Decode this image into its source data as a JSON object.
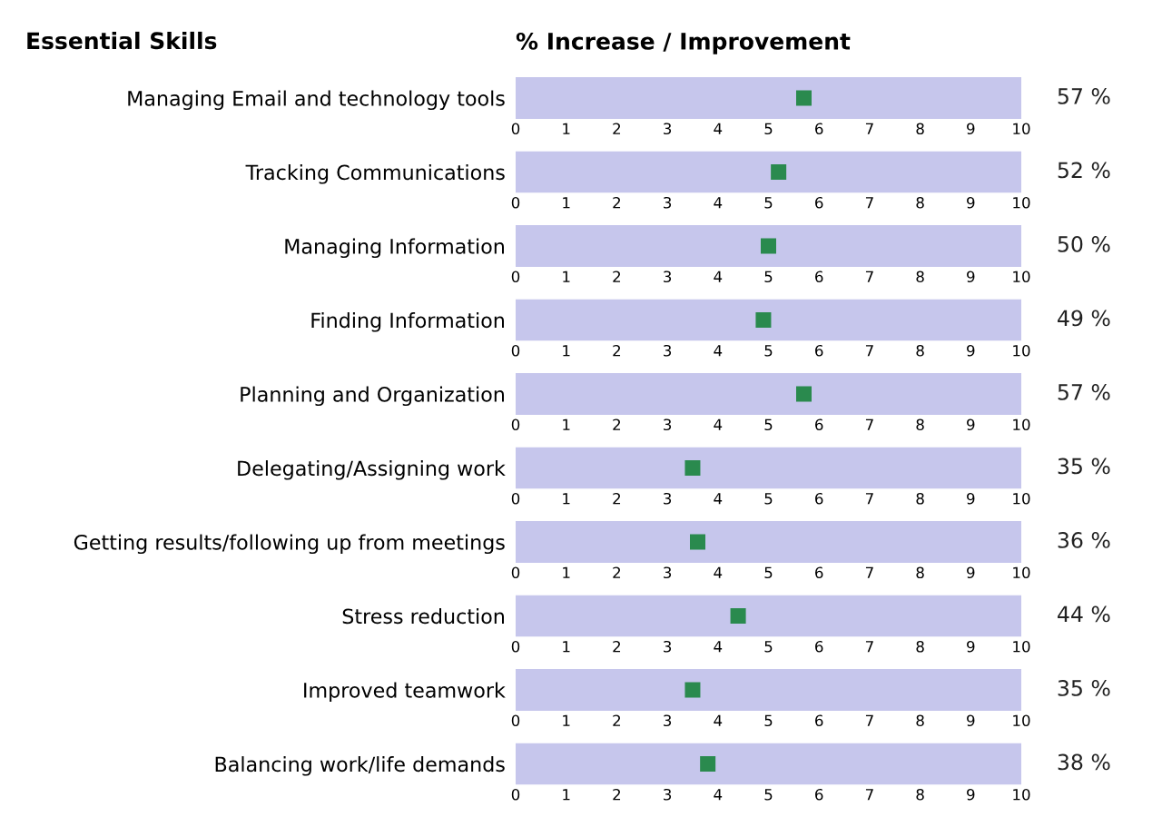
{
  "chart_data": [
    {
      "type": "scatter",
      "orientation": "horizontal",
      "title": "% Increase / Improvement",
      "ylabel": "Essential Skills",
      "categories": [
        "Managing Email and technology tools"
      ],
      "values": [
        5.7
      ],
      "annotations": [
        "57 %"
      ],
      "color": "#2a8a4e",
      "marker": "square",
      "xlim": [
        0,
        10
      ],
      "xticks": [
        0,
        1,
        2,
        3,
        4,
        5,
        6,
        7,
        8,
        9,
        10
      ],
      "bands": [
        {
          "axis": "x",
          "from": 0,
          "to": 10,
          "color": "#c6c6ec"
        }
      ]
    },
    {
      "type": "scatter",
      "orientation": "horizontal",
      "categories": [
        "Tracking Communications"
      ],
      "values": [
        5.2
      ],
      "annotations": [
        "52 %"
      ],
      "color": "#2a8a4e",
      "marker": "square",
      "xlim": [
        0,
        10
      ],
      "xticks": [
        0,
        1,
        2,
        3,
        4,
        5,
        6,
        7,
        8,
        9,
        10
      ],
      "bands": [
        {
          "axis": "x",
          "from": 0,
          "to": 10,
          "color": "#c6c6ec"
        }
      ]
    },
    {
      "type": "scatter",
      "orientation": "horizontal",
      "categories": [
        "Managing Information"
      ],
      "values": [
        5.0
      ],
      "annotations": [
        "50 %"
      ],
      "color": "#2a8a4e",
      "marker": "square",
      "xlim": [
        0,
        10
      ],
      "xticks": [
        0,
        1,
        2,
        3,
        4,
        5,
        6,
        7,
        8,
        9,
        10
      ],
      "bands": [
        {
          "axis": "x",
          "from": 0,
          "to": 10,
          "color": "#c6c6ec"
        }
      ]
    },
    {
      "type": "scatter",
      "orientation": "horizontal",
      "categories": [
        "Finding Information"
      ],
      "values": [
        4.9
      ],
      "annotations": [
        "49 %"
      ],
      "color": "#2a8a4e",
      "marker": "square",
      "xlim": [
        0,
        10
      ],
      "xticks": [
        0,
        1,
        2,
        3,
        4,
        5,
        6,
        7,
        8,
        9,
        10
      ],
      "bands": [
        {
          "axis": "x",
          "from": 0,
          "to": 10,
          "color": "#c6c6ec"
        }
      ]
    },
    {
      "type": "scatter",
      "orientation": "horizontal",
      "categories": [
        "Planning and Organization"
      ],
      "values": [
        5.7
      ],
      "annotations": [
        "57 %"
      ],
      "color": "#2a8a4e",
      "marker": "square",
      "xlim": [
        0,
        10
      ],
      "xticks": [
        0,
        1,
        2,
        3,
        4,
        5,
        6,
        7,
        8,
        9,
        10
      ],
      "bands": [
        {
          "axis": "x",
          "from": 0,
          "to": 10,
          "color": "#c6c6ec"
        }
      ]
    },
    {
      "type": "scatter",
      "orientation": "horizontal",
      "categories": [
        "Delegating/Assigning work"
      ],
      "values": [
        3.5
      ],
      "annotations": [
        "35 %"
      ],
      "color": "#2a8a4e",
      "marker": "square",
      "xlim": [
        0,
        10
      ],
      "xticks": [
        0,
        1,
        2,
        3,
        4,
        5,
        6,
        7,
        8,
        9,
        10
      ],
      "bands": [
        {
          "axis": "x",
          "from": 0,
          "to": 10,
          "color": "#c6c6ec"
        }
      ]
    },
    {
      "type": "scatter",
      "orientation": "horizontal",
      "categories": [
        "Getting results/following up from meetings"
      ],
      "values": [
        3.6
      ],
      "annotations": [
        "36 %"
      ],
      "color": "#2a8a4e",
      "marker": "square",
      "xlim": [
        0,
        10
      ],
      "xticks": [
        0,
        1,
        2,
        3,
        4,
        5,
        6,
        7,
        8,
        9,
        10
      ],
      "bands": [
        {
          "axis": "x",
          "from": 0,
          "to": 10,
          "color": "#c6c6ec"
        }
      ]
    },
    {
      "type": "scatter",
      "orientation": "horizontal",
      "categories": [
        "Stress reduction"
      ],
      "values": [
        4.4
      ],
      "annotations": [
        "44 %"
      ],
      "color": "#2a8a4e",
      "marker": "square",
      "xlim": [
        0,
        10
      ],
      "xticks": [
        0,
        1,
        2,
        3,
        4,
        5,
        6,
        7,
        8,
        9,
        10
      ],
      "bands": [
        {
          "axis": "x",
          "from": 0,
          "to": 10,
          "color": "#c6c6ec"
        }
      ]
    },
    {
      "type": "scatter",
      "orientation": "horizontal",
      "categories": [
        "Improved teamwork"
      ],
      "values": [
        3.5
      ],
      "annotations": [
        "35 %"
      ],
      "color": "#2a8a4e",
      "marker": "square",
      "xlim": [
        0,
        10
      ],
      "xticks": [
        0,
        1,
        2,
        3,
        4,
        5,
        6,
        7,
        8,
        9,
        10
      ],
      "bands": [
        {
          "axis": "x",
          "from": 0,
          "to": 10,
          "color": "#c6c6ec"
        }
      ]
    },
    {
      "type": "scatter",
      "orientation": "horizontal",
      "categories": [
        "Balancing work/life demands"
      ],
      "values": [
        3.8
      ],
      "annotations": [
        "38 %"
      ],
      "color": "#2a8a4e",
      "marker": "square",
      "xlim": [
        0,
        10
      ],
      "xticks": [
        0,
        1,
        2,
        3,
        4,
        5,
        6,
        7,
        8,
        9,
        10
      ],
      "bands": [
        {
          "axis": "x",
          "from": 0,
          "to": 10,
          "color": "#c6c6ec"
        }
      ]
    }
  ]
}
